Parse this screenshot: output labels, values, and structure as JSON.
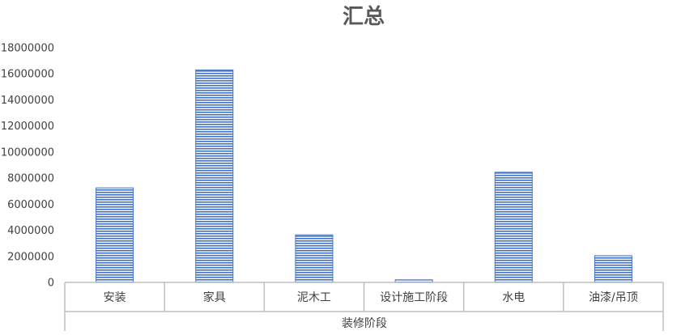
{
  "chart_data": {
    "type": "bar",
    "title": "汇总",
    "xlabel": "装修阶段",
    "ylabel": "",
    "categories": [
      "安装",
      "家具",
      "泥木工",
      "设计施工阶段",
      "水电",
      "油漆/吊顶"
    ],
    "values": [
      7250000,
      16300000,
      3650000,
      200000,
      8450000,
      2050000
    ],
    "ylim": [
      0,
      18000000
    ],
    "yticks": [
      0,
      2000000,
      4000000,
      6000000,
      8000000,
      10000000,
      12000000,
      14000000,
      16000000,
      18000000
    ],
    "ytick_labels": [
      "0",
      "2000000",
      "4000000",
      "6000000",
      "8000000",
      "10000000",
      "12000000",
      "14000000",
      "16000000",
      "18000000"
    ],
    "grid": false,
    "legend": "none",
    "colors": {
      "bar_stroke": "#4472C4",
      "bar_stripe": "#4472C4",
      "axis": "#BFBFBF",
      "text": "#404040",
      "title": "#595959"
    }
  }
}
